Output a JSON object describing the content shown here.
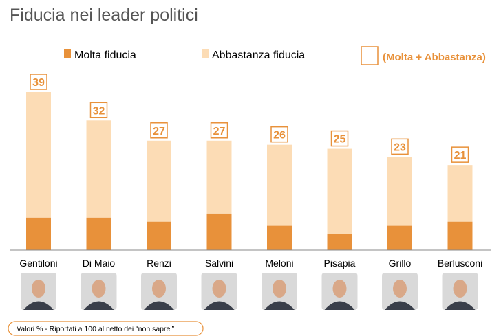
{
  "title": "Fiducia nei leader politici",
  "legend": {
    "molta": "Molta fiducia",
    "abbastanza": "Abbastanza fiducia",
    "total": "(Molta + Abbastanza)"
  },
  "footnote": "Valori % - Riportati a 100 al netto dei “non saprei”",
  "colors": {
    "molta": "#e8913a",
    "abbastanza": "#fcdcb5",
    "accent": "#e8913a",
    "axis": "#888888"
  },
  "chart_data": {
    "type": "bar",
    "stacked": true,
    "categories": [
      "Gentiloni",
      "Di Maio",
      "Renzi",
      "Salvini",
      "Meloni",
      "Pisapia",
      "Grillo",
      "Berlusconi"
    ],
    "series": [
      {
        "name": "Molta fiducia",
        "values": [
          8,
          8,
          7,
          9,
          6,
          4,
          6,
          7
        ]
      },
      {
        "name": "Abbastanza fiducia",
        "values": [
          31,
          24,
          20,
          18,
          20,
          21,
          17,
          14
        ]
      }
    ],
    "totals": [
      39,
      32,
      27,
      27,
      26,
      25,
      23,
      21
    ],
    "ylim": [
      0,
      39
    ],
    "grid": false,
    "legend_position": "top"
  }
}
